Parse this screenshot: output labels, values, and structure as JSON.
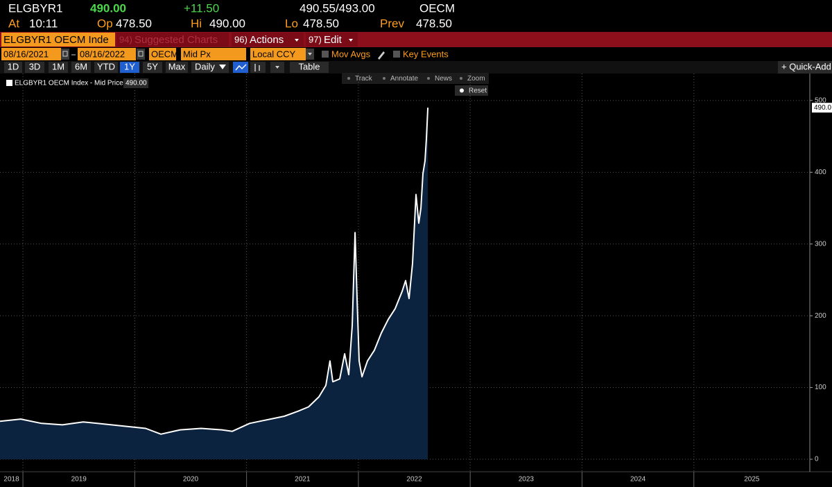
{
  "header": {
    "ticker": "ELGBYR1",
    "last": "490.00",
    "change": "+11.50",
    "bid_ask": "490.55/493.00",
    "source": "OECM",
    "stats": [
      {
        "label": "At",
        "value": "10:11"
      },
      {
        "label": "Op",
        "value": "478.50"
      },
      {
        "label": "Hi",
        "value": "490.00"
      },
      {
        "label": "Lo",
        "value": "478.50"
      },
      {
        "label": "Prev",
        "value": "478.50"
      }
    ]
  },
  "menu": {
    "security": "ELGBYR1 OECM Inde",
    "items": [
      {
        "num": "94)",
        "label": "Suggested Charts"
      },
      {
        "num": "96)",
        "label": "Actions"
      },
      {
        "num": "97)",
        "label": "Edit"
      }
    ]
  },
  "controls": {
    "start": "08/16/2021",
    "end": "08/16/2022",
    "source": "OECM",
    "field": "Mid Px",
    "currency": "Local CCY",
    "checks": [
      "Mov Avgs",
      "Key Events"
    ]
  },
  "periods": [
    "1D",
    "3D",
    "1M",
    "6M",
    "YTD",
    "1Y",
    "5Y",
    "Max"
  ],
  "selected_period": "1Y",
  "frequency": "Daily",
  "table": "Table",
  "quick_add": "+ Quick-Add",
  "tools": [
    "Track",
    "Annotate",
    "News",
    "Zoom"
  ],
  "reset": "Reset",
  "chart_data": {
    "type": "area",
    "legend_value": "490.00",
    "last_price_tag": {
      "value": 490,
      "label": "490.0"
    },
    "x": [
      2018.795,
      2018.981,
      2019.167,
      2019.353,
      2019.539,
      2019.725,
      2019.911,
      2020.097,
      2020.234,
      2020.407,
      2020.593,
      2020.779,
      2020.872,
      2021.027,
      2021.213,
      2021.337,
      2021.461,
      2021.554,
      2021.647,
      2021.709,
      2021.746,
      2021.771,
      2021.833,
      2021.877,
      2021.914,
      2021.945,
      2021.97,
      2021.988,
      2022.007,
      2022.032,
      2022.081,
      2022.143,
      2022.205,
      2022.267,
      2022.329,
      2022.391,
      2022.422,
      2022.453,
      2022.484,
      2022.515,
      2022.54,
      2022.559,
      2022.577,
      2022.596,
      2022.608,
      2022.621
    ],
    "series": [
      {
        "name": "ELGBYR1 OECM Index - Mid Price",
        "color": "#ffffff",
        "fill": "#0c2340",
        "values": [
          53,
          56,
          50,
          48,
          52,
          49,
          46,
          43,
          35,
          41,
          43,
          41,
          39,
          50,
          56,
          60,
          67,
          73,
          87,
          103,
          137,
          108,
          112,
          147,
          118,
          186,
          316,
          224,
          137,
          115,
          137,
          152,
          176,
          195,
          210,
          234,
          249,
          224,
          273,
          369,
          329,
          350,
          398,
          416,
          447,
          490
        ]
      }
    ],
    "xlim": [
      2018.795,
      2026.037
    ],
    "ylim": [
      -17.4,
      526
    ],
    "xticks": [
      {
        "value": 2018,
        "label": "2018"
      },
      {
        "value": 2019,
        "label": "2019"
      },
      {
        "value": 2020,
        "label": "2020"
      },
      {
        "value": 2021,
        "label": "2021"
      },
      {
        "value": 2022,
        "label": "2022"
      },
      {
        "value": 2023,
        "label": "2023"
      },
      {
        "value": 2024,
        "label": "2024"
      },
      {
        "value": 2025,
        "label": "2025"
      }
    ],
    "yticks": [
      0,
      100,
      200,
      300,
      400,
      500
    ],
    "grid": true
  }
}
